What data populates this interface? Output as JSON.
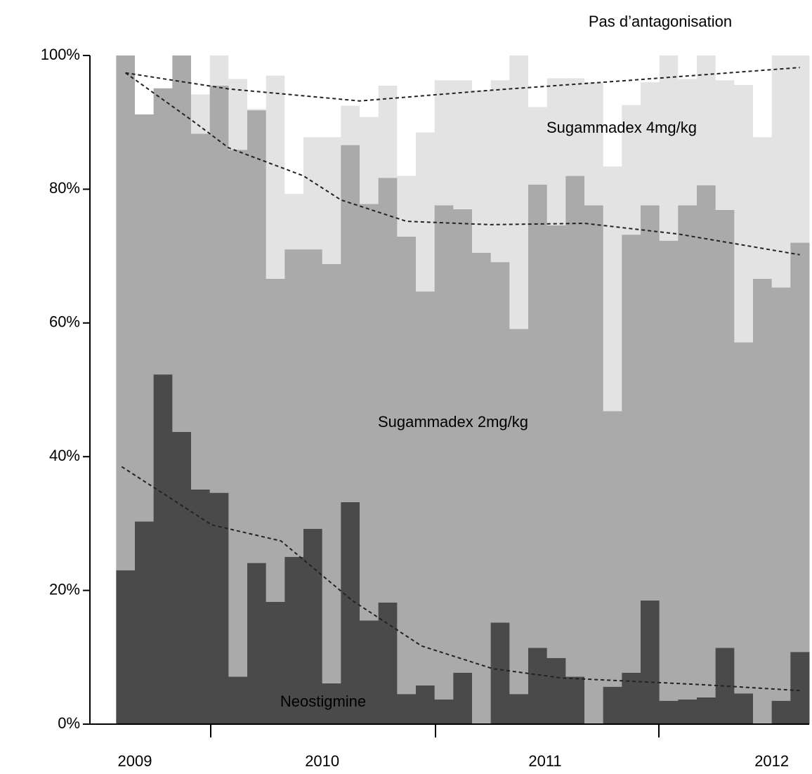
{
  "chart_data": {
    "type": "stacked_bar",
    "x": [
      0,
      1,
      2,
      3,
      4,
      5,
      6,
      7,
      8,
      9,
      10,
      11,
      12,
      13,
      14,
      15,
      16,
      17,
      18,
      19,
      20,
      21,
      22,
      23,
      24,
      25,
      26,
      27,
      28,
      29,
      30,
      31,
      32,
      33,
      34,
      35,
      36
    ],
    "xlim": [
      -1.4,
      37
    ],
    "xticks": [
      {
        "value": 1,
        "label": "2009"
      },
      {
        "value": 11,
        "label": "2010"
      },
      {
        "value": 22.9,
        "label": "2011"
      },
      {
        "value": 35,
        "label": "2012"
      }
    ],
    "ylim": [
      0,
      100
    ],
    "yticks": [
      {
        "value": 0,
        "label": "0%"
      },
      {
        "value": 20,
        "label": "20%"
      },
      {
        "value": 40,
        "label": "40%"
      },
      {
        "value": 60,
        "label": "60%"
      },
      {
        "value": 80,
        "label": "80%"
      },
      {
        "value": 100,
        "label": "100%"
      }
    ],
    "series": [
      {
        "name": "Neostigmine",
        "color": "#4a4a4a",
        "label_color": "#cfcfcf",
        "values": [
          23.0,
          30.3,
          52.3,
          43.7,
          35.1,
          34.6,
          7.1,
          24.1,
          18.3,
          25.0,
          29.2,
          6.1,
          33.2,
          15.5,
          18.2,
          4.5,
          5.8,
          3.7,
          7.7,
          0,
          15.2,
          4.5,
          11.4,
          9.9,
          7.1,
          0,
          5.6,
          7.7,
          18.5,
          3.5,
          3.7,
          4.0,
          11.4,
          4.6,
          0,
          3.5,
          10.8
        ]
      },
      {
        "name": "Sugammadex 2mg/kg",
        "color": "#aaaaaa",
        "label_color": "#000000",
        "values": [
          77.0,
          60.9,
          42.8,
          56.3,
          53.2,
          60.9,
          78.8,
          67.7,
          48.3,
          46.0,
          41.8,
          62.7,
          53.4,
          62.3,
          63.5,
          68.4,
          58.9,
          73.9,
          69.3,
          70.5,
          53.9,
          54.6,
          69.3,
          64.7,
          74.9,
          77.6,
          41.2,
          65.5,
          59.1,
          68.8,
          73.9,
          76.6,
          65.5,
          52.5,
          66.6,
          61.8,
          61.2
        ]
      },
      {
        "name": "Sugammadex 4mg/kg",
        "color": "#e3e3e3",
        "label_color": "#000000",
        "values": [
          0,
          0,
          0,
          0,
          5.9,
          4.5,
          10.6,
          0.2,
          30.4,
          8.3,
          16.8,
          19.0,
          5.9,
          13.0,
          13.8,
          9.1,
          23.8,
          18.7,
          19.3,
          24.3,
          27.2,
          40.9,
          11.6,
          22.0,
          14.6,
          18.4,
          36.6,
          19.4,
          18.4,
          27.7,
          18.9,
          19.4,
          19.4,
          38.5,
          21.2,
          34.7,
          28.0
        ]
      },
      {
        "name": "Pas d’antagonisation",
        "color": "#ffffff",
        "label_color": "#000000",
        "values": [
          0,
          8.8,
          4.9,
          0,
          5.8,
          0,
          3.5,
          8.0,
          3.0,
          20.7,
          12.2,
          12.2,
          7.5,
          9.2,
          4.5,
          18.0,
          11.5,
          3.7,
          3.7,
          5.2,
          3.7,
          0,
          7.7,
          3.4,
          3.4,
          4.0,
          16.6,
          7.4,
          4.0,
          0,
          3.5,
          0,
          3.7,
          4.4,
          12.2,
          0,
          0
        ]
      }
    ],
    "trends": [
      {
        "x": [
          0.5,
          6,
          13,
          20,
          27,
          36.5
        ],
        "values": [
          97.4,
          95.0,
          93.2,
          94.8,
          96.2,
          98.2
        ]
      },
      {
        "x": [
          0.5,
          4,
          6,
          10,
          12,
          15.5,
          20,
          25,
          30,
          36.5
        ],
        "values": [
          97.4,
          90.4,
          86.2,
          82.0,
          78.4,
          75.2,
          74.7,
          74.9,
          73.3,
          70.2
        ]
      },
      {
        "x": [
          0.3,
          5.1,
          8.8,
          12.6,
          16.3,
          20.1,
          23.8,
          27.6,
          31.3,
          36.6
        ],
        "values": [
          38.5,
          29.8,
          27.4,
          18.5,
          11.7,
          8.3,
          6.9,
          6.4,
          5.9,
          5.0
        ]
      }
    ]
  }
}
